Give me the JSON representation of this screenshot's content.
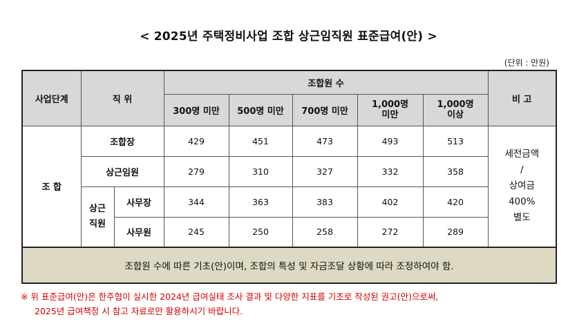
{
  "title": "< 2025년 주택정비사업 조합 상근임직원 표준급여(안) >",
  "unit": "(단위 : 만원)",
  "headers": {
    "stage": "사업단계",
    "position": "직 위",
    "members": "조합원 수",
    "remarks": "비 고",
    "cols": [
      "300명 미만",
      "500명 미만",
      "700명 미만",
      "1,000명\n미만",
      "1,000명\n이상"
    ]
  },
  "stage_label": "조 합",
  "rows": [
    {
      "label": "조합장",
      "values": [
        "429",
        "451",
        "473",
        "493",
        "513"
      ]
    },
    {
      "label": "상근임원",
      "values": [
        "279",
        "310",
        "327",
        "332",
        "358"
      ]
    },
    {
      "group": "상근\n직원",
      "label": "사무장",
      "values": [
        "344",
        "363",
        "383",
        "402",
        "420"
      ]
    },
    {
      "label": "사무원",
      "values": [
        "245",
        "250",
        "258",
        "272",
        "289"
      ]
    }
  ],
  "remarks": "세전금액\n/\n상여금\n400%\n별도",
  "note": "조합원 수에 따른 기초(안)이며, 조합의 특성 및 자금조달 상황에 따라 조정하여야 함.",
  "footnote": {
    "line1": "※ 위 표준급여(안)은 한주협이 실시한 2024년 급여실태 조사 결과 및 다양한 지표를 기초로 작성된 권고(안)으로써,",
    "line2": "2025년 급여책정 시 참고 자료로만 활용하시기 바랍니다."
  }
}
